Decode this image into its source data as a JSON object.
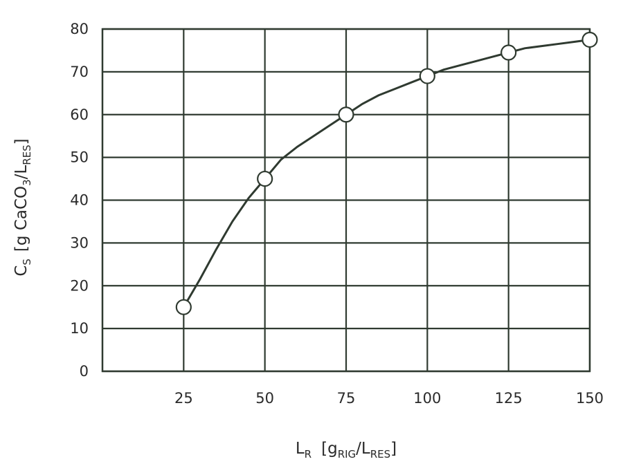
{
  "chart_data": {
    "type": "line",
    "title": "",
    "xlabel": {
      "main": "L",
      "main_sub": "R",
      "bracket_open": "[g",
      "num_sub": "RIG",
      "slash": "/L",
      "den_sub": "RES",
      "bracket_close": "]"
    },
    "ylabel": {
      "main": "C",
      "main_sub": "S",
      "bracket_open": "[g CaCO",
      "num_sub": "3",
      "slash": "/L",
      "den_sub": "RES",
      "bracket_close": "]"
    },
    "x_ticks": [
      "25",
      "50",
      "75",
      "100",
      "125",
      "150"
    ],
    "y_ticks": [
      "0",
      "10",
      "20",
      "30",
      "40",
      "50",
      "60",
      "70",
      "80"
    ],
    "xlim": [
      0,
      150
    ],
    "ylim": [
      0,
      80
    ],
    "grid": true,
    "series": [
      {
        "x": [
          25,
          50,
          75,
          100,
          125,
          150
        ],
        "y": [
          15,
          45,
          60,
          69,
          74.5,
          77.5
        ]
      }
    ],
    "curve": {
      "x": [
        25,
        30,
        35,
        40,
        45,
        50,
        55,
        60,
        65,
        70,
        75,
        80,
        85,
        90,
        95,
        100,
        105,
        110,
        115,
        120,
        125,
        130,
        135,
        140,
        145,
        150
      ],
      "y": [
        15,
        21.5,
        28.5,
        35,
        40.5,
        45,
        49.5,
        52.5,
        55,
        57.5,
        60,
        62.5,
        64.5,
        66,
        67.5,
        69,
        70.5,
        71.5,
        72.5,
        73.5,
        74.5,
        75.5,
        76,
        76.5,
        77,
        77.5
      ]
    }
  }
}
